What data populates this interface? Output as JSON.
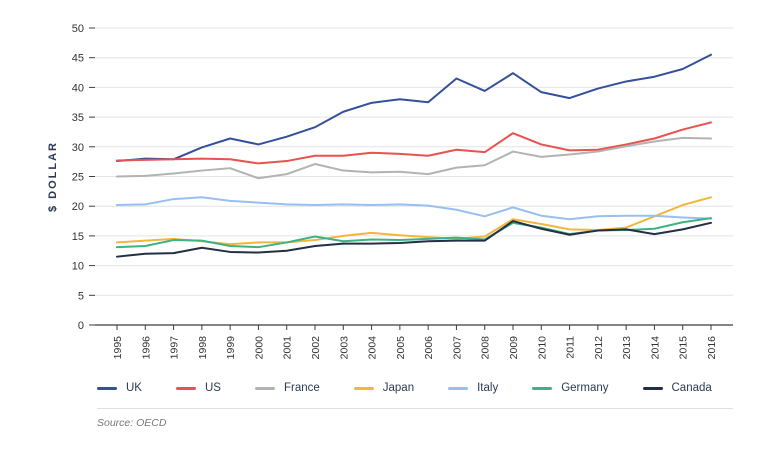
{
  "chart_data": {
    "type": "line",
    "title": "",
    "xlabel": "",
    "ylabel": "$ DOLLAR",
    "ylim": [
      0,
      50
    ],
    "ytick_step": 5,
    "grid": "horizontal",
    "legend_position": "bottom",
    "source": "Source: OECD",
    "axis_color": "#3c3c3c",
    "gridline_color": "#e4e4e4",
    "years": [
      "1995",
      "1996",
      "1997",
      "1998",
      "1999",
      "2000",
      "2001",
      "2002",
      "2003",
      "2004",
      "2005",
      "2006",
      "2007",
      "2008",
      "2009",
      "2010",
      "2011",
      "2012",
      "2013",
      "2014",
      "2015",
      "2016"
    ],
    "series": [
      {
        "name": "UK",
        "color": "#35509b",
        "values": [
          27.6,
          28.0,
          27.9,
          29.9,
          31.4,
          30.4,
          31.7,
          33.3,
          35.9,
          37.4,
          38.0,
          37.5,
          41.5,
          39.4,
          42.4,
          39.2,
          38.2,
          39.8,
          41.0,
          41.8,
          43.1,
          45.5
        ]
      },
      {
        "name": "US",
        "color": "#e8524f",
        "values": [
          27.7,
          27.8,
          27.9,
          28.0,
          27.9,
          27.2,
          27.6,
          28.5,
          28.5,
          29.0,
          28.8,
          28.5,
          29.5,
          29.1,
          32.3,
          30.4,
          29.4,
          29.5,
          30.4,
          31.4,
          32.9,
          34.1
        ]
      },
      {
        "name": "France",
        "color": "#b3b3b3",
        "values": [
          25.0,
          25.1,
          25.5,
          26.0,
          26.4,
          24.7,
          25.4,
          27.1,
          26.0,
          25.7,
          25.8,
          25.4,
          26.5,
          26.9,
          29.2,
          28.3,
          28.7,
          29.2,
          30.1,
          30.9,
          31.5,
          31.4
        ]
      },
      {
        "name": "Japan",
        "color": "#f2b63c",
        "values": [
          13.9,
          14.2,
          14.5,
          14.1,
          13.6,
          13.9,
          13.9,
          14.3,
          15.0,
          15.5,
          15.1,
          14.8,
          14.5,
          14.9,
          17.8,
          17.0,
          16.1,
          16.0,
          16.4,
          18.3,
          20.2,
          21.5
        ]
      },
      {
        "name": "Italy",
        "color": "#97bff0",
        "values": [
          20.2,
          20.3,
          21.2,
          21.5,
          20.9,
          20.6,
          20.3,
          20.2,
          20.3,
          20.2,
          20.3,
          20.1,
          19.4,
          18.3,
          19.8,
          18.4,
          17.8,
          18.3,
          18.4,
          18.4,
          18.1,
          17.9
        ]
      },
      {
        "name": "Germany",
        "color": "#3cb285",
        "values": [
          13.1,
          13.3,
          14.3,
          14.2,
          13.3,
          13.1,
          13.9,
          14.9,
          14.1,
          14.4,
          14.3,
          14.5,
          14.7,
          14.4,
          17.2,
          16.4,
          15.3,
          15.9,
          16.0,
          16.2,
          17.3,
          18.0
        ]
      },
      {
        "name": "Canada",
        "color": "#232f44",
        "values": [
          11.5,
          12.0,
          12.1,
          13.0,
          12.3,
          12.2,
          12.5,
          13.3,
          13.7,
          13.7,
          13.8,
          14.1,
          14.2,
          14.2,
          17.5,
          16.2,
          15.2,
          15.9,
          16.1,
          15.3,
          16.1,
          17.2
        ]
      }
    ]
  }
}
